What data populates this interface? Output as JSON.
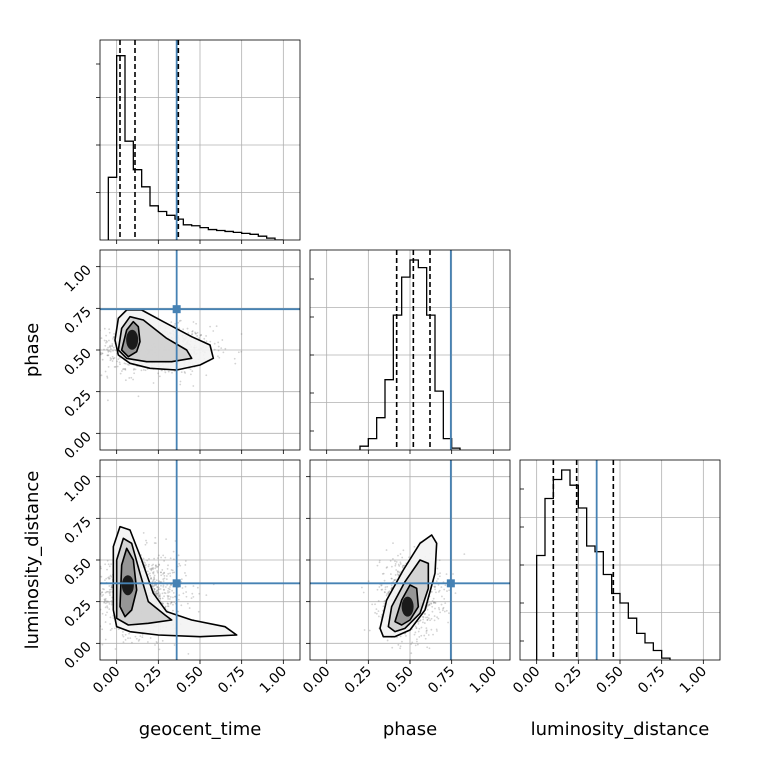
{
  "chart_data": {
    "type": "corner",
    "parameters": [
      "geocent_time",
      "phase",
      "luminosity_distance"
    ],
    "tick_values": [
      0.0,
      0.25,
      0.5,
      0.75,
      1.0
    ],
    "tick_labels": [
      "0.00",
      "0.25",
      "0.50",
      "0.75",
      "1.00"
    ],
    "axis_range": [
      -0.1,
      1.1
    ],
    "grid": true,
    "colors": {
      "truth": "#4682b4",
      "line": "#000000",
      "grid": "#b0b0b0",
      "sample": "#808080"
    },
    "truths": {
      "geocent_time": 0.36,
      "phase": 0.745,
      "luminosity_distance": 0.36
    },
    "quantiles": {
      "geocent_time": [
        0.02,
        0.11,
        0.37
      ],
      "phase": [
        0.42,
        0.52,
        0.62
      ],
      "luminosity_distance": [
        0.1,
        0.24,
        0.46
      ]
    },
    "histograms": {
      "geocent_time": {
        "edges": [
          -0.05,
          0.0,
          0.05,
          0.1,
          0.15,
          0.2,
          0.25,
          0.3,
          0.35,
          0.4,
          0.45,
          0.5,
          0.55,
          0.6,
          0.65,
          0.7,
          0.75,
          0.8,
          0.85,
          0.9,
          0.95,
          1.0
        ],
        "heights": [
          0.33,
          0.97,
          0.52,
          0.37,
          0.28,
          0.18,
          0.15,
          0.13,
          0.11,
          0.08,
          0.075,
          0.065,
          0.055,
          0.05,
          0.045,
          0.04,
          0.035,
          0.03,
          0.02,
          0.01,
          0.0
        ]
      },
      "phase": {
        "edges": [
          0.2,
          0.25,
          0.3,
          0.35,
          0.4,
          0.45,
          0.5,
          0.55,
          0.6,
          0.65,
          0.7,
          0.75,
          0.8
        ],
        "heights": [
          0.02,
          0.06,
          0.17,
          0.37,
          0.71,
          0.91,
          1.0,
          0.96,
          0.71,
          0.31,
          0.06,
          0.01
        ]
      },
      "luminosity_distance": {
        "edges": [
          0.0,
          0.05,
          0.1,
          0.15,
          0.2,
          0.25,
          0.3,
          0.35,
          0.4,
          0.45,
          0.5,
          0.55,
          0.6,
          0.65,
          0.7,
          0.75,
          0.8
        ],
        "heights": [
          0.55,
          0.85,
          0.95,
          1.0,
          0.92,
          0.8,
          0.6,
          0.57,
          0.45,
          0.35,
          0.3,
          0.22,
          0.14,
          0.09,
          0.05,
          0.01
        ]
      }
    },
    "joint": [
      {
        "x_param": "geocent_time",
        "y_param": "phase",
        "sample_center": [
          0.22,
          0.5
        ],
        "sample_spread": [
          0.22,
          0.08
        ],
        "sample_count": 900,
        "contours": [
          {
            "level": 1,
            "points": [
              [
                0.03,
                0.5
              ],
              [
                0.06,
                0.62
              ],
              [
                0.1,
                0.67
              ],
              [
                0.13,
                0.64
              ],
              [
                0.14,
                0.55
              ],
              [
                0.12,
                0.49
              ],
              [
                0.07,
                0.46
              ]
            ]
          },
          {
            "level": 2,
            "points": [
              [
                0.01,
                0.5
              ],
              [
                0.03,
                0.63
              ],
              [
                0.08,
                0.7
              ],
              [
                0.16,
                0.68
              ],
              [
                0.3,
                0.57
              ],
              [
                0.42,
                0.5
              ],
              [
                0.45,
                0.45
              ],
              [
                0.33,
                0.43
              ],
              [
                0.18,
                0.43
              ],
              [
                0.06,
                0.45
              ]
            ]
          },
          {
            "level": 3,
            "points": [
              [
                -0.01,
                0.56
              ],
              [
                0.01,
                0.69
              ],
              [
                0.06,
                0.74
              ],
              [
                0.15,
                0.74
              ],
              [
                0.28,
                0.67
              ],
              [
                0.45,
                0.58
              ],
              [
                0.56,
                0.53
              ],
              [
                0.58,
                0.45
              ],
              [
                0.5,
                0.41
              ],
              [
                0.36,
                0.38
              ],
              [
                0.2,
                0.39
              ],
              [
                0.08,
                0.42
              ],
              [
                0.01,
                0.47
              ]
            ]
          }
        ]
      },
      {
        "x_param": "geocent_time",
        "y_param": "luminosity_distance",
        "sample_center": [
          0.15,
          0.3
        ],
        "sample_spread": [
          0.15,
          0.14
        ],
        "sample_count": 900,
        "contours": [
          {
            "level": 1,
            "points": [
              [
                0.02,
                0.22
              ],
              [
                0.03,
                0.47
              ],
              [
                0.06,
                0.57
              ],
              [
                0.1,
                0.5
              ],
              [
                0.12,
                0.32
              ],
              [
                0.09,
                0.2
              ],
              [
                0.05,
                0.16
              ]
            ]
          },
          {
            "level": 2,
            "points": [
              [
                0.0,
                0.15
              ],
              [
                0.0,
                0.5
              ],
              [
                0.04,
                0.63
              ],
              [
                0.09,
                0.6
              ],
              [
                0.14,
                0.42
              ],
              [
                0.19,
                0.25
              ],
              [
                0.29,
                0.17
              ],
              [
                0.33,
                0.14
              ],
              [
                0.19,
                0.12
              ],
              [
                0.07,
                0.11
              ]
            ]
          },
          {
            "level": 3,
            "points": [
              [
                -0.02,
                0.2
              ],
              [
                -0.02,
                0.58
              ],
              [
                0.02,
                0.7
              ],
              [
                0.08,
                0.68
              ],
              [
                0.15,
                0.5
              ],
              [
                0.22,
                0.3
              ],
              [
                0.3,
                0.19
              ],
              [
                0.45,
                0.14
              ],
              [
                0.65,
                0.1
              ],
              [
                0.72,
                0.05
              ],
              [
                0.5,
                0.04
              ],
              [
                0.25,
                0.05
              ],
              [
                0.08,
                0.07
              ],
              [
                0.0,
                0.1
              ]
            ]
          }
        ]
      },
      {
        "x_param": "phase",
        "y_param": "luminosity_distance",
        "sample_center": [
          0.5,
          0.28
        ],
        "sample_spread": [
          0.1,
          0.13
        ],
        "sample_count": 900,
        "contours": [
          {
            "level": 1,
            "points": [
              [
                0.41,
                0.13
              ],
              [
                0.45,
                0.26
              ],
              [
                0.5,
                0.35
              ],
              [
                0.54,
                0.33
              ],
              [
                0.55,
                0.22
              ],
              [
                0.5,
                0.14
              ],
              [
                0.45,
                0.11
              ]
            ]
          },
          {
            "level": 2,
            "points": [
              [
                0.37,
                0.1
              ],
              [
                0.39,
                0.22
              ],
              [
                0.47,
                0.37
              ],
              [
                0.56,
                0.5
              ],
              [
                0.61,
                0.48
              ],
              [
                0.61,
                0.33
              ],
              [
                0.56,
                0.18
              ],
              [
                0.47,
                0.09
              ],
              [
                0.41,
                0.07
              ]
            ]
          },
          {
            "level": 3,
            "points": [
              [
                0.32,
                0.09
              ],
              [
                0.36,
                0.26
              ],
              [
                0.46,
                0.44
              ],
              [
                0.56,
                0.6
              ],
              [
                0.63,
                0.65
              ],
              [
                0.66,
                0.6
              ],
              [
                0.65,
                0.42
              ],
              [
                0.59,
                0.2
              ],
              [
                0.5,
                0.08
              ],
              [
                0.41,
                0.04
              ],
              [
                0.34,
                0.04
              ]
            ]
          }
        ]
      }
    ]
  }
}
